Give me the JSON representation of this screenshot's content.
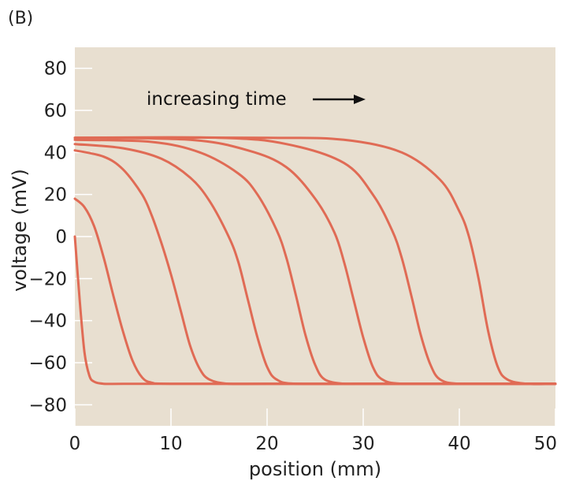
{
  "panel_label": "(B)",
  "annotation": "increasing time",
  "colors": {
    "plot_background": "#e8dfd0",
    "curve": "#e06b55",
    "ticks": "#ffffff",
    "arrow": "#111111"
  },
  "chart_data": {
    "type": "line",
    "xlabel": "position (mm)",
    "ylabel": "voltage (mV)",
    "xlim": [
      0,
      50
    ],
    "ylim": [
      -90,
      90
    ],
    "x_ticks": [
      0,
      10,
      20,
      30,
      40,
      50
    ],
    "y_ticks": [
      80,
      60,
      40,
      20,
      0,
      -20,
      -40,
      -60,
      -80
    ],
    "x_tick_labels": [
      "0",
      "10",
      "20",
      "30",
      "40",
      "50"
    ],
    "y_tick_labels": [
      "80",
      "60",
      "40",
      "20",
      "0",
      "−20",
      "−40",
      "−60",
      "−80"
    ],
    "grid": false,
    "series": [
      {
        "x": [
          0,
          0.5,
          1,
          1.5,
          2,
          3,
          5,
          10,
          20,
          30,
          40,
          50
        ],
        "y": [
          0,
          -30,
          -55,
          -66,
          -69,
          -70,
          -70,
          -70,
          -70,
          -70,
          -70,
          -70
        ]
      },
      {
        "x": [
          0,
          1,
          2,
          3,
          4,
          5,
          6,
          7,
          8,
          10,
          20,
          30,
          40,
          50
        ],
        "y": [
          18,
          14,
          5,
          -10,
          -28,
          -45,
          -59,
          -67,
          -69.5,
          -70,
          -70,
          -70,
          -70,
          -70
        ]
      },
      {
        "x": [
          0,
          3,
          5,
          7,
          8,
          9,
          10,
          11,
          12,
          13,
          14,
          16,
          20,
          30,
          40,
          50
        ],
        "y": [
          41,
          38,
          32,
          20,
          10,
          -3,
          -18,
          -35,
          -52,
          -63,
          -68,
          -70,
          -70,
          -70,
          -70,
          -70
        ]
      },
      {
        "x": [
          0,
          5,
          9,
          12,
          14,
          16,
          17,
          18,
          19,
          20,
          21,
          23,
          30,
          40,
          50
        ],
        "y": [
          44,
          42,
          37,
          28,
          17,
          0,
          -12,
          -30,
          -48,
          -62,
          -68,
          -70,
          -70,
          -70,
          -70
        ]
      },
      {
        "x": [
          0,
          8,
          13,
          17,
          19,
          21,
          22,
          23,
          24,
          25,
          26,
          28,
          30,
          40,
          50
        ],
        "y": [
          46,
          45,
          40,
          30,
          20,
          3,
          -10,
          -28,
          -47,
          -61,
          -68,
          -70,
          -70,
          -70,
          -70
        ]
      },
      {
        "x": [
          0,
          12,
          18,
          22,
          25,
          27,
          28,
          29,
          30,
          31,
          32,
          34,
          40,
          50
        ],
        "y": [
          47,
          46,
          41,
          33,
          18,
          2,
          -12,
          -30,
          -48,
          -62,
          -68,
          -70,
          -70,
          -70
        ]
      },
      {
        "x": [
          0,
          15,
          22,
          28,
          31,
          33,
          34,
          35,
          36,
          37,
          38,
          40,
          45,
          50
        ],
        "y": [
          47,
          47,
          44,
          35,
          20,
          3,
          -10,
          -28,
          -47,
          -61,
          -68,
          -70,
          -70,
          -70
        ]
      },
      {
        "x": [
          0,
          20,
          28,
          34,
          38,
          40,
          41,
          42,
          43,
          44,
          45,
          47,
          50
        ],
        "y": [
          47,
          47,
          46,
          40,
          27,
          12,
          0,
          -20,
          -45,
          -62,
          -68,
          -70,
          -70
        ]
      }
    ]
  }
}
